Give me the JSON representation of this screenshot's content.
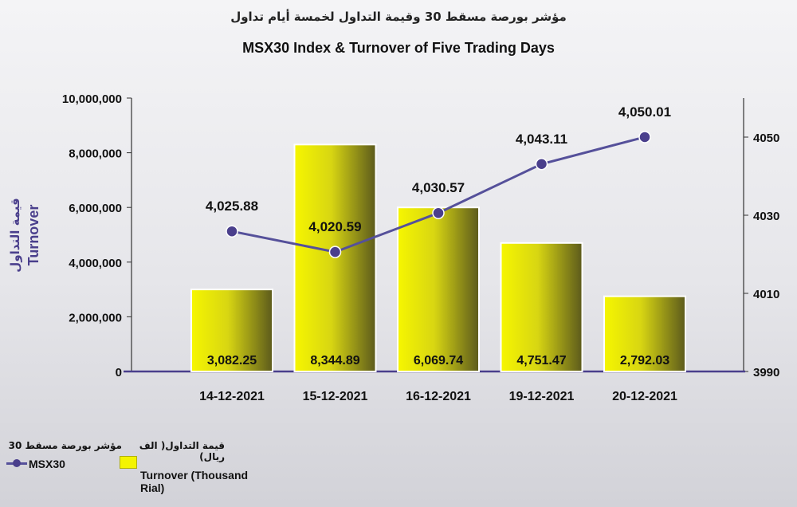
{
  "title_ar": "مؤشر بورصة مسقط 30 وقيمة التداول لخمسة أيام تداول",
  "title_en": "MSX30 Index & Turnover of Five Trading Days",
  "colors": {
    "line": "#55509a",
    "marker": "#4a3f8c",
    "bar_light": "#f6f600",
    "bar_dark": "#5c5a1c"
  },
  "chart_data": {
    "type": "bar",
    "categories": [
      "14-12-2021",
      "15-12-2021",
      "16-12-2021",
      "19-12-2021",
      "20-12-2021"
    ],
    "series": [
      {
        "axis": "left",
        "kind": "bar",
        "values": [
          3082.25,
          8344.89,
          6069.74,
          4751.47,
          2792.03
        ],
        "labels": [
          "3,082.25",
          "8,344.89",
          "6,069.74",
          "4,751.47",
          "2,792.03"
        ]
      },
      {
        "axis": "right",
        "kind": "line",
        "values": [
          4025.88,
          4020.59,
          4030.57,
          4043.11,
          4050.01
        ],
        "labels": [
          "4,025.88",
          "4,020.59",
          "4,030.57",
          "4,043.11",
          "4,050.01"
        ]
      }
    ],
    "bar_scale_values": [
      3000000,
      8300000,
      6000000,
      4700000,
      2750000
    ],
    "y_left": {
      "ylim": [
        0,
        10000000
      ],
      "ticks": [
        "0",
        "2,000,000",
        "4,000,000",
        "6,000,000",
        "8,000,000",
        "10,000,000"
      ],
      "label_ar": "قيمة التداول",
      "label_en": "Turnover"
    },
    "y_right": {
      "ylim": [
        3990,
        4060
      ],
      "ticks": [
        "3990",
        "4010",
        "4030",
        "4050"
      ],
      "tick_values": [
        3990,
        4010,
        4030,
        4050
      ]
    },
    "legend": {
      "position": "bottom-left",
      "msx_ar": "مؤشر بورصة مسقط 30",
      "msx_en": "MSX30",
      "turnover_ar": "قيمة التداول( الف ريال)",
      "turnover_en": "Turnover (Thousand Rial)"
    }
  }
}
